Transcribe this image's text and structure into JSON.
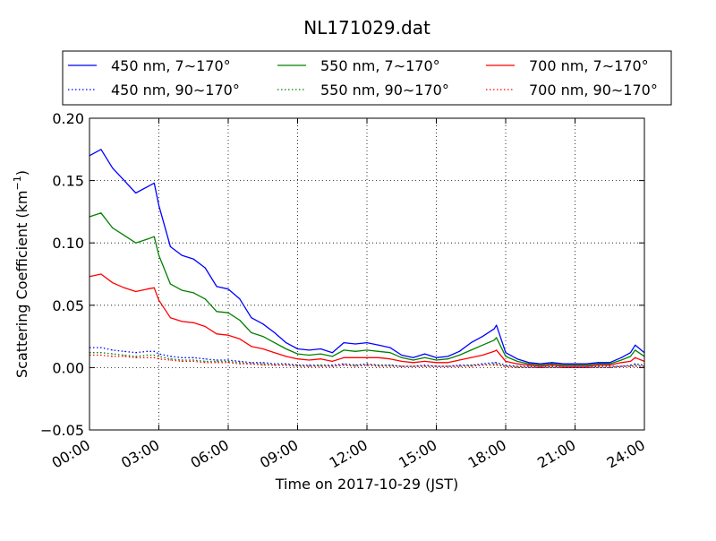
{
  "chart_data": {
    "type": "line",
    "title": "NL171029.dat",
    "xlabel": "Time on 2017-10-29 (JST)",
    "ylabel": "Scattering Coefficient (km",
    "ylabel_sup": "−1",
    "ylabel_close": ")",
    "x_unit": "hours",
    "xlim": [
      0,
      24
    ],
    "ylim": [
      -0.05,
      0.2
    ],
    "grid": true,
    "grid_style": "dotted",
    "legend_position": "top",
    "x_ticks": [
      {
        "value": 0,
        "label": "00:00"
      },
      {
        "value": 3,
        "label": "03:00"
      },
      {
        "value": 6,
        "label": "06:00"
      },
      {
        "value": 9,
        "label": "09:00"
      },
      {
        "value": 12,
        "label": "12:00"
      },
      {
        "value": 15,
        "label": "15:00"
      },
      {
        "value": 18,
        "label": "18:00"
      },
      {
        "value": 21,
        "label": "21:00"
      },
      {
        "value": 24,
        "label": "24:00"
      }
    ],
    "y_ticks": [
      {
        "value": 0.2,
        "label": "0.20"
      },
      {
        "value": 0.15,
        "label": "0.15"
      },
      {
        "value": 0.1,
        "label": "0.10"
      },
      {
        "value": 0.05,
        "label": "0.05"
      },
      {
        "value": 0.0,
        "label": "0.00"
      },
      {
        "value": -0.05,
        "label": "−0.05"
      }
    ],
    "x": [
      0,
      0.5,
      1,
      1.5,
      2,
      2.5,
      2.8,
      3,
      3.5,
      4,
      4.5,
      5,
      5.5,
      6,
      6.5,
      7,
      7.5,
      8,
      8.5,
      9,
      9.5,
      10,
      10.5,
      11,
      11.5,
      12,
      12.5,
      13,
      13.5,
      14,
      14.5,
      15,
      15.5,
      16,
      16.5,
      17,
      17.5,
      17.6,
      18,
      18.5,
      19,
      19.5,
      20,
      20.5,
      21,
      21.5,
      22,
      22.5,
      23,
      23.4,
      23.6,
      24
    ],
    "series": [
      {
        "name": "450 nm, 7∼170°",
        "color": "#0000ff",
        "style": "solid",
        "values": [
          0.17,
          0.175,
          0.16,
          0.15,
          0.14,
          0.145,
          0.148,
          0.13,
          0.097,
          0.09,
          0.087,
          0.08,
          0.065,
          0.063,
          0.055,
          0.04,
          0.035,
          0.028,
          0.02,
          0.015,
          0.014,
          0.015,
          0.012,
          0.02,
          0.019,
          0.02,
          0.018,
          0.016,
          0.01,
          0.008,
          0.011,
          0.008,
          0.009,
          0.013,
          0.02,
          0.025,
          0.031,
          0.034,
          0.012,
          0.007,
          0.004,
          0.003,
          0.004,
          0.003,
          0.003,
          0.003,
          0.004,
          0.004,
          0.008,
          0.012,
          0.018,
          0.012
        ]
      },
      {
        "name": "550 nm, 7∼170°",
        "color": "#008000",
        "style": "solid",
        "values": [
          0.121,
          0.124,
          0.112,
          0.106,
          0.1,
          0.103,
          0.105,
          0.09,
          0.067,
          0.062,
          0.06,
          0.055,
          0.045,
          0.044,
          0.038,
          0.028,
          0.025,
          0.02,
          0.015,
          0.011,
          0.01,
          0.011,
          0.009,
          0.014,
          0.013,
          0.014,
          0.013,
          0.012,
          0.008,
          0.006,
          0.008,
          0.006,
          0.007,
          0.01,
          0.014,
          0.018,
          0.022,
          0.024,
          0.009,
          0.005,
          0.003,
          0.002,
          0.003,
          0.002,
          0.002,
          0.002,
          0.003,
          0.003,
          0.006,
          0.009,
          0.014,
          0.009
        ]
      },
      {
        "name": "700 nm, 7∼170°",
        "color": "#ff0000",
        "style": "solid",
        "values": [
          0.073,
          0.075,
          0.068,
          0.064,
          0.061,
          0.063,
          0.064,
          0.054,
          0.04,
          0.037,
          0.036,
          0.033,
          0.027,
          0.026,
          0.023,
          0.017,
          0.015,
          0.012,
          0.009,
          0.007,
          0.006,
          0.007,
          0.005,
          0.008,
          0.008,
          0.008,
          0.008,
          0.007,
          0.005,
          0.004,
          0.005,
          0.004,
          0.004,
          0.006,
          0.008,
          0.01,
          0.013,
          0.014,
          0.005,
          0.003,
          0.002,
          0.001,
          0.002,
          0.001,
          0.001,
          0.001,
          0.002,
          0.002,
          0.004,
          0.005,
          0.008,
          0.005
        ]
      },
      {
        "name": "450 nm, 90∼170°",
        "color": "#0000ff",
        "style": "dotted",
        "values": [
          0.016,
          0.016,
          0.014,
          0.013,
          0.012,
          0.013,
          0.013,
          0.011,
          0.009,
          0.008,
          0.008,
          0.007,
          0.006,
          0.006,
          0.005,
          0.004,
          0.004,
          0.003,
          0.003,
          0.002,
          0.002,
          0.002,
          0.002,
          0.003,
          0.002,
          0.003,
          0.002,
          0.002,
          0.001,
          0.001,
          0.002,
          0.001,
          0.001,
          0.002,
          0.002,
          0.003,
          0.004,
          0.004,
          0.002,
          0.001,
          0.001,
          0.0,
          0.001,
          0.0,
          0.0,
          0.0,
          0.001,
          0.001,
          0.001,
          0.002,
          0.003,
          0.002
        ]
      },
      {
        "name": "550 nm, 90∼170°",
        "color": "#008000",
        "style": "dotted",
        "values": [
          0.012,
          0.012,
          0.011,
          0.01,
          0.009,
          0.01,
          0.01,
          0.009,
          0.007,
          0.006,
          0.006,
          0.005,
          0.005,
          0.005,
          0.004,
          0.003,
          0.003,
          0.002,
          0.002,
          0.002,
          0.001,
          0.002,
          0.001,
          0.002,
          0.002,
          0.002,
          0.002,
          0.002,
          0.001,
          0.001,
          0.001,
          0.001,
          0.001,
          0.001,
          0.002,
          0.002,
          0.003,
          0.003,
          0.001,
          0.001,
          0.0,
          0.0,
          0.0,
          0.0,
          0.0,
          0.0,
          0.0,
          0.0,
          0.001,
          0.001,
          0.002,
          0.001
        ]
      },
      {
        "name": "700 nm, 90∼170°",
        "color": "#ff0000",
        "style": "dotted",
        "values": [
          0.01,
          0.01,
          0.009,
          0.009,
          0.008,
          0.008,
          0.008,
          0.007,
          0.006,
          0.005,
          0.005,
          0.004,
          0.004,
          0.004,
          0.003,
          0.003,
          0.002,
          0.002,
          0.002,
          0.001,
          0.001,
          0.001,
          0.001,
          0.002,
          0.001,
          0.002,
          0.001,
          0.001,
          0.001,
          0.001,
          0.001,
          0.001,
          0.001,
          0.001,
          0.001,
          0.002,
          0.002,
          0.002,
          0.001,
          0.0,
          0.0,
          0.0,
          0.0,
          0.0,
          0.0,
          0.0,
          0.0,
          0.0,
          0.001,
          0.001,
          0.001,
          0.001
        ]
      }
    ],
    "legend_order": [
      0,
      1,
      2,
      3,
      4,
      5
    ]
  }
}
